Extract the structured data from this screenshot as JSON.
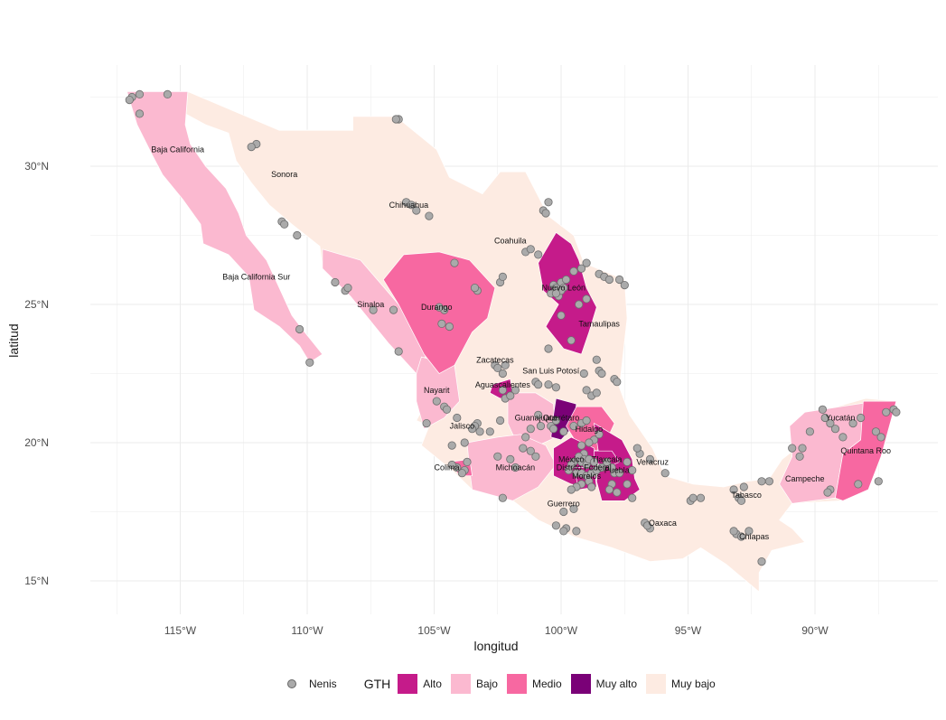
{
  "map": {
    "xlabel": "longitud",
    "ylabel": "latitud",
    "x_ticks": [
      {
        "lon": -115,
        "label": "115°W"
      },
      {
        "lon": -110,
        "label": "110°W"
      },
      {
        "lon": -105,
        "label": "105°W"
      },
      {
        "lon": -100,
        "label": "100°W"
      },
      {
        "lon": -95,
        "label": "95°W"
      },
      {
        "lon": -90,
        "label": "90°W"
      }
    ],
    "y_ticks": [
      {
        "lat": 30,
        "label": "30°N"
      },
      {
        "lat": 25,
        "label": "25°N"
      },
      {
        "lat": 20,
        "label": "20°N"
      },
      {
        "lat": 15,
        "label": "15°N"
      }
    ],
    "colors": {
      "Alto": "#c51b8a",
      "Bajo": "#fbb9d0",
      "Medio": "#f768a1",
      "Muy alto": "#7a0177",
      "Muy bajo": "#fdebe2",
      "points_fill": "#aaaaaa",
      "points_stroke": "#6e6e6e"
    },
    "states": [
      {
        "name": "Baja California",
        "gth": "Bajo",
        "label_lon": -115.1,
        "label_lat": 30.5
      },
      {
        "name": "Baja California Sur",
        "gth": "Bajo",
        "label_lon": -112.0,
        "label_lat": 25.9
      },
      {
        "name": "Sonora",
        "gth": "Muy bajo",
        "label_lon": -110.9,
        "label_lat": 29.6
      },
      {
        "name": "Chihuahua",
        "gth": "Muy bajo",
        "label_lon": -106.0,
        "label_lat": 28.5
      },
      {
        "name": "Coahuila",
        "gth": "Muy bajo",
        "label_lon": -102.0,
        "label_lat": 27.2
      },
      {
        "name": "Nuevo León",
        "gth": "Alto",
        "label_lon": -99.9,
        "label_lat": 25.5
      },
      {
        "name": "Tamaulipas",
        "gth": "Muy bajo",
        "label_lon": -98.5,
        "label_lat": 24.2
      },
      {
        "name": "Sinaloa",
        "gth": "Bajo",
        "label_lon": -107.5,
        "label_lat": 24.9
      },
      {
        "name": "Durango",
        "gth": "Medio",
        "label_lon": -104.9,
        "label_lat": 24.8
      },
      {
        "name": "Zacatecas",
        "gth": "Muy bajo",
        "label_lon": -102.6,
        "label_lat": 22.9
      },
      {
        "name": "San Luis Potosí",
        "gth": "Muy bajo",
        "label_lon": -100.4,
        "label_lat": 22.5
      },
      {
        "name": "Nayarit",
        "gth": "Bajo",
        "label_lon": -104.9,
        "label_lat": 21.8
      },
      {
        "name": "Aguascalientes",
        "gth": "Alto",
        "label_lon": -102.3,
        "label_lat": 22.0
      },
      {
        "name": "Guanajuato",
        "gth": "Bajo",
        "label_lon": -101.0,
        "label_lat": 20.8
      },
      {
        "name": "Querétaro",
        "gth": "Muy alto",
        "label_lon": -100.0,
        "label_lat": 20.8
      },
      {
        "name": "Hidalgo",
        "gth": "Medio",
        "label_lon": -98.9,
        "label_lat": 20.4
      },
      {
        "name": "Jalisco",
        "gth": "Muy bajo",
        "label_lon": -103.9,
        "label_lat": 20.5
      },
      {
        "name": "Colima",
        "gth": "Medio",
        "label_lon": -104.5,
        "label_lat": 19.0
      },
      {
        "name": "Michoacán",
        "gth": "Bajo",
        "label_lon": -101.8,
        "label_lat": 19.0
      },
      {
        "name": "México",
        "gth": "Alto",
        "label_lon": -99.6,
        "label_lat": 19.3
      },
      {
        "name": "Distrito Federal",
        "gth": "Alto",
        "label_lon": -99.1,
        "label_lat": 19.0
      },
      {
        "name": "Tlaxcala",
        "gth": "Alto",
        "label_lon": -98.2,
        "label_lat": 19.3
      },
      {
        "name": "Morelos",
        "gth": "Alto",
        "label_lon": -99.0,
        "label_lat": 18.7
      },
      {
        "name": "Puebla",
        "gth": "Alto",
        "label_lon": -97.8,
        "label_lat": 18.9
      },
      {
        "name": "Veracruz",
        "gth": "Muy bajo",
        "label_lon": -96.4,
        "label_lat": 19.2
      },
      {
        "name": "Guerrero",
        "gth": "Muy bajo",
        "label_lon": -99.9,
        "label_lat": 17.7
      },
      {
        "name": "Oaxaca",
        "gth": "Muy bajo",
        "label_lon": -96.0,
        "label_lat": 17.0
      },
      {
        "name": "Tabasco",
        "gth": "Muy bajo",
        "label_lon": -92.7,
        "label_lat": 18.0
      },
      {
        "name": "Chiapas",
        "gth": "Muy bajo",
        "label_lon": -92.4,
        "label_lat": 16.5
      },
      {
        "name": "Campeche",
        "gth": "Bajo",
        "label_lon": -90.4,
        "label_lat": 18.6
      },
      {
        "name": "Yucatán",
        "gth": "Bajo",
        "label_lon": -89.0,
        "label_lat": 20.8
      },
      {
        "name": "Quintana Roo",
        "gth": "Medio",
        "label_lon": -88.0,
        "label_lat": 19.6
      }
    ],
    "nenis_points": [
      [
        -116.9,
        32.5
      ],
      [
        -116.6,
        32.6
      ],
      [
        -117.0,
        32.4
      ],
      [
        -116.6,
        31.9
      ],
      [
        -115.5,
        32.6
      ],
      [
        -112.0,
        30.8
      ],
      [
        -112.2,
        30.7
      ],
      [
        -111.0,
        28.0
      ],
      [
        -110.9,
        27.9
      ],
      [
        -110.4,
        27.5
      ],
      [
        -110.3,
        24.1
      ],
      [
        -109.9,
        22.9
      ],
      [
        -108.9,
        25.8
      ],
      [
        -108.5,
        25.5
      ],
      [
        -108.4,
        25.6
      ],
      [
        -107.4,
        24.8
      ],
      [
        -106.4,
        31.7
      ],
      [
        -106.5,
        31.7
      ],
      [
        -106.1,
        28.7
      ],
      [
        -105.9,
        28.6
      ],
      [
        -105.7,
        28.4
      ],
      [
        -105.2,
        28.2
      ],
      [
        -104.6,
        24.8
      ],
      [
        -104.7,
        24.3
      ],
      [
        -104.4,
        24.2
      ],
      [
        -106.4,
        23.3
      ],
      [
        -106.6,
        24.8
      ],
      [
        -104.8,
        24.9
      ],
      [
        -104.2,
        26.5
      ],
      [
        -103.3,
        25.5
      ],
      [
        -103.4,
        25.6
      ],
      [
        -102.4,
        25.8
      ],
      [
        -102.3,
        26.0
      ],
      [
        -100.9,
        26.8
      ],
      [
        -101.4,
        26.9
      ],
      [
        -101.2,
        27.0
      ],
      [
        -100.7,
        28.4
      ],
      [
        -100.6,
        28.3
      ],
      [
        -100.5,
        28.7
      ],
      [
        -100.3,
        25.7
      ],
      [
        -100.2,
        25.6
      ],
      [
        -100.0,
        25.8
      ],
      [
        -100.4,
        25.4
      ],
      [
        -100.1,
        25.3
      ],
      [
        -99.9,
        25.6
      ],
      [
        -100.0,
        25.5
      ],
      [
        -100.2,
        25.4
      ],
      [
        -99.8,
        25.9
      ],
      [
        -99.5,
        26.2
      ],
      [
        -99.2,
        26.3
      ],
      [
        -99.0,
        26.5
      ],
      [
        -98.5,
        26.1
      ],
      [
        -98.3,
        26.0
      ],
      [
        -98.1,
        25.9
      ],
      [
        -97.7,
        25.9
      ],
      [
        -97.5,
        25.7
      ],
      [
        -99.3,
        25.0
      ],
      [
        -99.0,
        25.2
      ],
      [
        -100.0,
        24.6
      ],
      [
        -100.5,
        23.4
      ],
      [
        -99.6,
        23.7
      ],
      [
        -98.6,
        23.0
      ],
      [
        -99.1,
        22.5
      ],
      [
        -97.9,
        22.3
      ],
      [
        -97.8,
        22.2
      ],
      [
        -102.6,
        22.8
      ],
      [
        -102.5,
        22.7
      ],
      [
        -102.3,
        22.5
      ],
      [
        -102.2,
        22.8
      ],
      [
        -101.0,
        22.2
      ],
      [
        -100.9,
        22.1
      ],
      [
        -100.5,
        22.1
      ],
      [
        -100.2,
        22.0
      ],
      [
        -101.8,
        21.9
      ],
      [
        -102.3,
        21.9
      ],
      [
        -102.2,
        21.6
      ],
      [
        -102.0,
        21.7
      ],
      [
        -98.5,
        22.6
      ],
      [
        -98.4,
        22.5
      ],
      [
        -99.0,
        21.9
      ],
      [
        -98.8,
        21.7
      ],
      [
        -98.6,
        21.8
      ],
      [
        -104.9,
        21.5
      ],
      [
        -104.6,
        21.3
      ],
      [
        -104.5,
        21.2
      ],
      [
        -105.3,
        20.7
      ],
      [
        -104.1,
        20.9
      ],
      [
        -103.3,
        20.7
      ],
      [
        -103.4,
        20.6
      ],
      [
        -103.5,
        20.5
      ],
      [
        -103.2,
        20.4
      ],
      [
        -102.8,
        20.4
      ],
      [
        -102.4,
        20.8
      ],
      [
        -103.8,
        20.0
      ],
      [
        -104.3,
        19.9
      ],
      [
        -103.7,
        19.3
      ],
      [
        -103.8,
        19.0
      ],
      [
        -104.1,
        19.1
      ],
      [
        -104.3,
        19.2
      ],
      [
        -103.9,
        18.9
      ],
      [
        -102.5,
        19.5
      ],
      [
        -102.0,
        19.4
      ],
      [
        -101.2,
        19.7
      ],
      [
        -101.0,
        19.5
      ],
      [
        -101.5,
        19.8
      ],
      [
        -101.8,
        19.1
      ],
      [
        -102.3,
        18.0
      ],
      [
        -101.4,
        20.2
      ],
      [
        -101.2,
        20.5
      ],
      [
        -100.8,
        20.6
      ],
      [
        -100.9,
        21.0
      ],
      [
        -100.4,
        20.6
      ],
      [
        -100.3,
        20.5
      ],
      [
        -100.2,
        20.8
      ],
      [
        -99.9,
        20.4
      ],
      [
        -99.5,
        20.6
      ],
      [
        -99.2,
        20.7
      ],
      [
        -99.0,
        20.8
      ],
      [
        -98.7,
        20.1
      ],
      [
        -98.5,
        20.3
      ],
      [
        -98.9,
        20.0
      ],
      [
        -99.2,
        19.9
      ],
      [
        -99.1,
        19.6
      ],
      [
        -99.3,
        19.5
      ],
      [
        -99.5,
        19.3
      ],
      [
        -99.1,
        19.4
      ],
      [
        -99.2,
        19.3
      ],
      [
        -99.0,
        19.2
      ],
      [
        -98.9,
        19.4
      ],
      [
        -98.7,
        19.3
      ],
      [
        -99.6,
        19.2
      ],
      [
        -99.7,
        19.0
      ],
      [
        -99.4,
        18.9
      ],
      [
        -99.2,
        18.9
      ],
      [
        -99.0,
        18.8
      ],
      [
        -98.8,
        18.9
      ],
      [
        -98.6,
        19.0
      ],
      [
        -98.4,
        19.1
      ],
      [
        -98.2,
        19.3
      ],
      [
        -98.0,
        19.1
      ],
      [
        -97.9,
        18.9
      ],
      [
        -97.7,
        18.9
      ],
      [
        -97.4,
        19.3
      ],
      [
        -97.2,
        19.0
      ],
      [
        -97.4,
        18.5
      ],
      [
        -98.9,
        18.6
      ],
      [
        -99.2,
        18.5
      ],
      [
        -99.4,
        18.4
      ],
      [
        -99.6,
        18.3
      ],
      [
        -98.8,
        18.4
      ],
      [
        -98.0,
        18.5
      ],
      [
        -97.8,
        18.2
      ],
      [
        -99.5,
        17.6
      ],
      [
        -99.9,
        17.5
      ],
      [
        -99.8,
        16.9
      ],
      [
        -99.9,
        16.8
      ],
      [
        -99.4,
        16.8
      ],
      [
        -100.2,
        17.0
      ],
      [
        -96.7,
        17.1
      ],
      [
        -96.5,
        16.9
      ],
      [
        -96.6,
        17.0
      ],
      [
        -97.2,
        18.0
      ],
      [
        -98.1,
        18.3
      ],
      [
        -96.9,
        19.6
      ],
      [
        -97.0,
        19.8
      ],
      [
        -96.5,
        19.4
      ],
      [
        -95.9,
        18.9
      ],
      [
        -94.9,
        17.9
      ],
      [
        -94.5,
        18.0
      ],
      [
        -94.8,
        18.0
      ],
      [
        -93.0,
        18.0
      ],
      [
        -92.9,
        17.9
      ],
      [
        -93.2,
        18.3
      ],
      [
        -92.8,
        18.4
      ],
      [
        -92.1,
        18.6
      ],
      [
        -91.8,
        18.6
      ],
      [
        -93.1,
        16.7
      ],
      [
        -93.2,
        16.8
      ],
      [
        -92.9,
        16.6
      ],
      [
        -92.6,
        16.8
      ],
      [
        -92.1,
        15.7
      ],
      [
        -90.9,
        19.8
      ],
      [
        -90.5,
        19.8
      ],
      [
        -90.6,
        19.5
      ],
      [
        -90.2,
        20.4
      ],
      [
        -89.6,
        20.9
      ],
      [
        -89.7,
        21.2
      ],
      [
        -89.4,
        20.7
      ],
      [
        -89.2,
        20.5
      ],
      [
        -88.9,
        20.2
      ],
      [
        -88.5,
        20.7
      ],
      [
        -88.2,
        20.9
      ],
      [
        -87.6,
        20.4
      ],
      [
        -87.4,
        20.2
      ],
      [
        -87.2,
        21.1
      ],
      [
        -86.9,
        21.2
      ],
      [
        -86.8,
        21.1
      ],
      [
        -88.3,
        18.5
      ],
      [
        -87.5,
        18.6
      ],
      [
        -89.4,
        18.3
      ],
      [
        -89.5,
        18.2
      ]
    ]
  },
  "legend": {
    "points_label": "Nenis",
    "gth_title": "GTH",
    "categories": [
      "Alto",
      "Bajo",
      "Medio",
      "Muy alto",
      "Muy bajo"
    ]
  }
}
